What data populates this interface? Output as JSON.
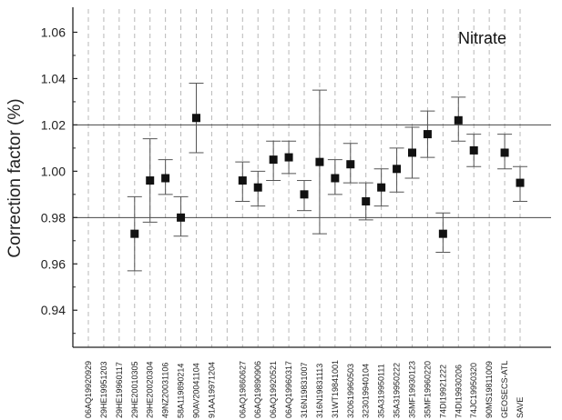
{
  "chart_data": {
    "type": "scatter",
    "title": "",
    "annotation": "Nitrate",
    "xlabel": "",
    "ylabel": "Correction factor (%)",
    "ylim": [
      0.924,
      1.07
    ],
    "yticks": [
      0.94,
      0.96,
      0.98,
      1.0,
      1.02,
      1.04,
      1.06
    ],
    "ytick_labels": [
      "0.94",
      "0.96",
      "0.98",
      "1.00",
      "1.02",
      "1.04",
      "1.06"
    ],
    "reference_lines": [
      0.98,
      1.02
    ],
    "grid": "vertical dashed at each category",
    "categories": [
      "06AQ19920929",
      "29HE19951203",
      "29HE19960117",
      "29HE20010305",
      "29HE20020304",
      "49NZ20031106",
      "58A119890214",
      "90AV20041104",
      "91AA19971204",
      "",
      "06AQ19860627",
      "06AQ19890906",
      "06AQ19920521",
      "06AQ19960317",
      "316N19831007",
      "316N19831113",
      "31WT19841001",
      "320619960503",
      "323019940104",
      "35A319950111",
      "35A319950222",
      "35MF19930123",
      "35MF19960220",
      "74DI19921222",
      "74DI19930206",
      "74JC19950320",
      "90MS19811009",
      "GEOSECS-ATL",
      "SAVE"
    ],
    "points": [
      {
        "category": "29HE20010305",
        "y": 0.973,
        "lo": 0.957,
        "hi": 0.989
      },
      {
        "category": "29HE20020304",
        "y": 0.996,
        "lo": 0.978,
        "hi": 1.014
      },
      {
        "category": "49NZ20031106",
        "y": 0.997,
        "lo": 0.99,
        "hi": 1.005
      },
      {
        "category": "58A119890214",
        "y": 0.98,
        "lo": 0.972,
        "hi": 0.989
      },
      {
        "category": "90AV20041104",
        "y": 1.023,
        "lo": 1.008,
        "hi": 1.038
      },
      {
        "category": "06AQ19860627",
        "y": 0.996,
        "lo": 0.987,
        "hi": 1.004
      },
      {
        "category": "06AQ19890906",
        "y": 0.993,
        "lo": 0.985,
        "hi": 1.0
      },
      {
        "category": "06AQ19920521",
        "y": 1.005,
        "lo": 0.996,
        "hi": 1.013
      },
      {
        "category": "06AQ19960317",
        "y": 1.006,
        "lo": 0.999,
        "hi": 1.013
      },
      {
        "category": "316N19831007",
        "y": 0.99,
        "lo": 0.983,
        "hi": 0.996
      },
      {
        "category": "316N19831113",
        "y": 1.004,
        "lo": 0.973,
        "hi": 1.035
      },
      {
        "category": "31WT19841001",
        "y": 0.997,
        "lo": 0.99,
        "hi": 1.005
      },
      {
        "category": "320619960503",
        "y": 1.003,
        "lo": 0.995,
        "hi": 1.012
      },
      {
        "category": "323019940104",
        "y": 0.987,
        "lo": 0.979,
        "hi": 0.995
      },
      {
        "category": "35A319950111",
        "y": 0.993,
        "lo": 0.985,
        "hi": 1.001
      },
      {
        "category": "35A319950222",
        "y": 1.001,
        "lo": 0.991,
        "hi": 1.01
      },
      {
        "category": "35MF19930123",
        "y": 1.008,
        "lo": 0.997,
        "hi": 1.019
      },
      {
        "category": "35MF19960220",
        "y": 1.016,
        "lo": 1.006,
        "hi": 1.026
      },
      {
        "category": "74DI19921222",
        "y": 0.973,
        "lo": 0.965,
        "hi": 0.982
      },
      {
        "category": "74DI19930206",
        "y": 1.022,
        "lo": 1.013,
        "hi": 1.032
      },
      {
        "category": "74JC19950320",
        "y": 1.009,
        "lo": 1.002,
        "hi": 1.016
      },
      {
        "category": "GEOSECS-ATL",
        "y": 1.008,
        "lo": 1.001,
        "hi": 1.016
      },
      {
        "category": "SAVE",
        "y": 0.995,
        "lo": 0.987,
        "hi": 1.002
      }
    ]
  }
}
